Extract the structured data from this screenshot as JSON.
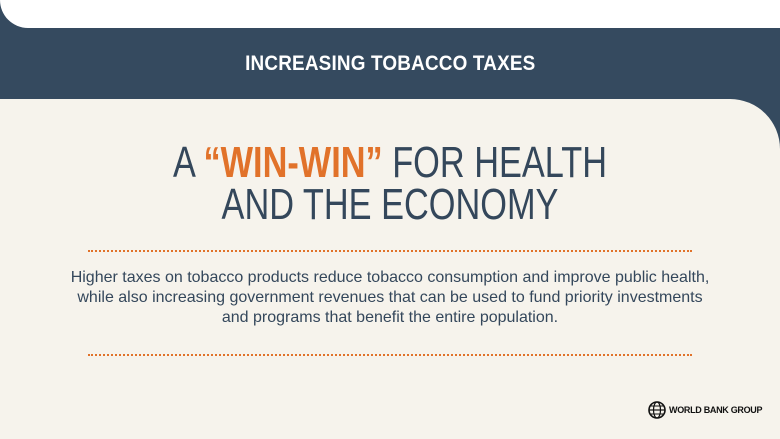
{
  "banner": {
    "title": "INCREASING TOBACCO TAXES"
  },
  "headline": {
    "prefix": "A ",
    "highlight": "“WIN-WIN”",
    "line1_suffix": " FOR HEALTH",
    "line2": "AND THE ECONOMY"
  },
  "body": "Higher taxes on tobacco products reduce tobacco consumption and improve public health, while also increasing government revenues that can be used to fund priority investments and programs that benefit the entire population.",
  "logo": {
    "text": "WORLD BANK GROUP",
    "icon": "globe-icon"
  },
  "colors": {
    "navy": "#354a5f",
    "orange": "#e1722a",
    "cream": "#f6f3ec"
  }
}
